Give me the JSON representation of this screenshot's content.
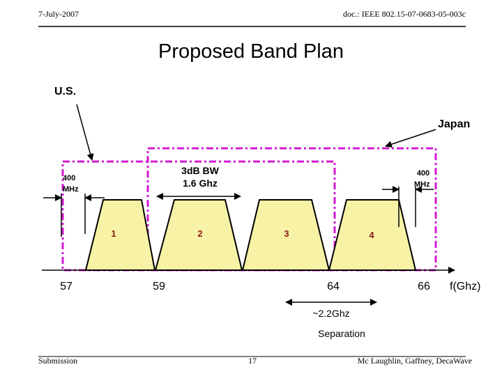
{
  "header": {
    "date": "7-July-2007",
    "doc": "doc.: IEEE 802.15-07-0683-05-003c"
  },
  "title": "Proposed Band Plan",
  "regions": {
    "us": "U.S.",
    "japan": "Japan"
  },
  "annotations": {
    "bw_line1": "3dB BW",
    "bw_line2": "1.6 Ghz",
    "guard_left_1": "400",
    "guard_left_2": "MHz",
    "guard_right_1": "400",
    "guard_right_2": "MHz",
    "separation_1": "~2.2Ghz",
    "separation_2": "Separation"
  },
  "channels": [
    "1",
    "2",
    "3",
    "4"
  ],
  "axis": {
    "labels": [
      "57",
      "59",
      "64",
      "66"
    ],
    "unit": "f(Ghz)"
  },
  "footer": {
    "left": "Submission",
    "page": "17",
    "right": "Mc Laughlin, Gaffney, DecaWave"
  }
}
